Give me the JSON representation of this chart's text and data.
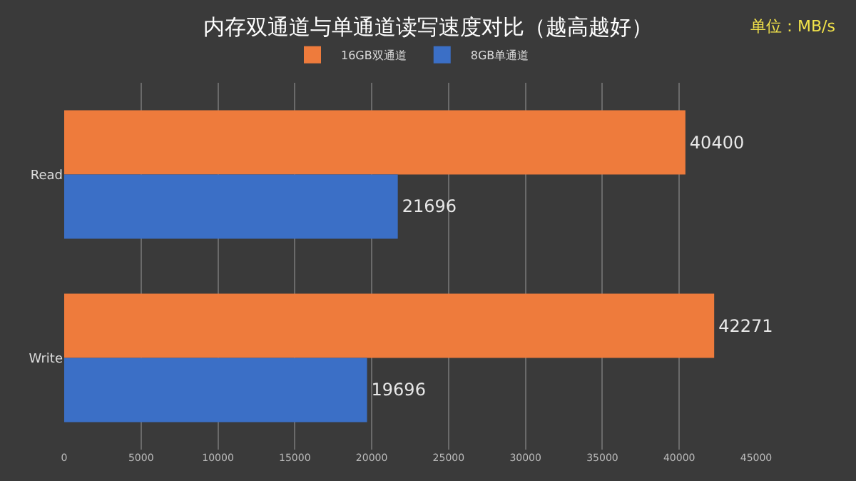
{
  "chart_data": {
    "type": "bar",
    "orientation": "horizontal",
    "title": "内存双通道与单通道读写速度对比（越高越好）",
    "annotations": [
      "单位：MB/s"
    ],
    "categories": [
      "Read",
      "Write"
    ],
    "series": [
      {
        "name": "16GB双通道",
        "color": "#ee7b3c",
        "values": [
          40400,
          42271
        ]
      },
      {
        "name": "8GB单通道",
        "color": "#3b6fc6",
        "values": [
          21696,
          19696
        ]
      }
    ],
    "xlim": [
      0,
      45000
    ],
    "xticks": [
      0,
      5000,
      10000,
      15000,
      20000,
      25000,
      30000,
      35000,
      40000,
      45000
    ],
    "grid": "x",
    "legend": "top",
    "data_labels": true
  }
}
